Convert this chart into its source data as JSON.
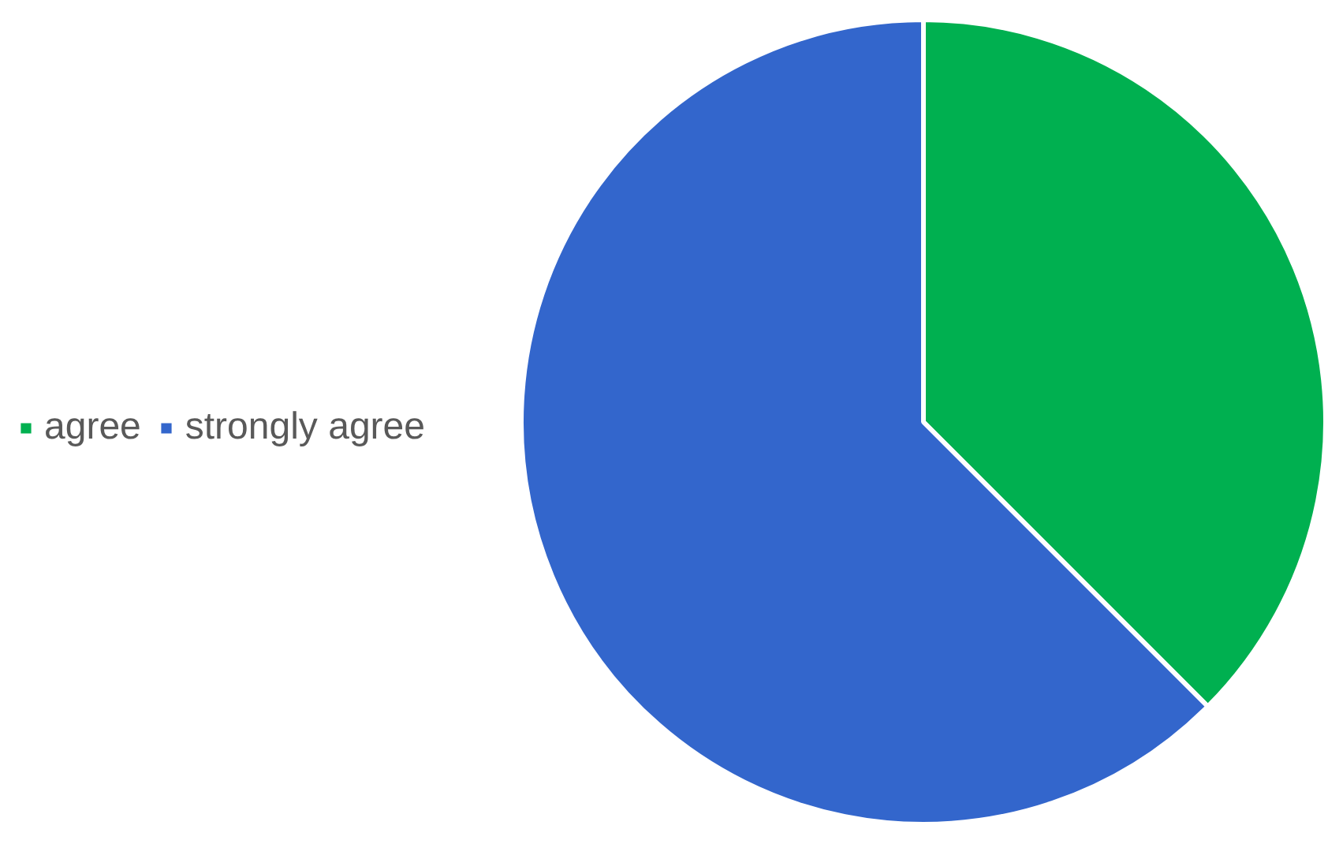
{
  "chart_data": {
    "type": "pie",
    "categories": [
      "agree",
      "strongly agree"
    ],
    "values": [
      37.5,
      62.5
    ],
    "colors": [
      "#00b050",
      "#3366cc"
    ],
    "legend": "left"
  }
}
